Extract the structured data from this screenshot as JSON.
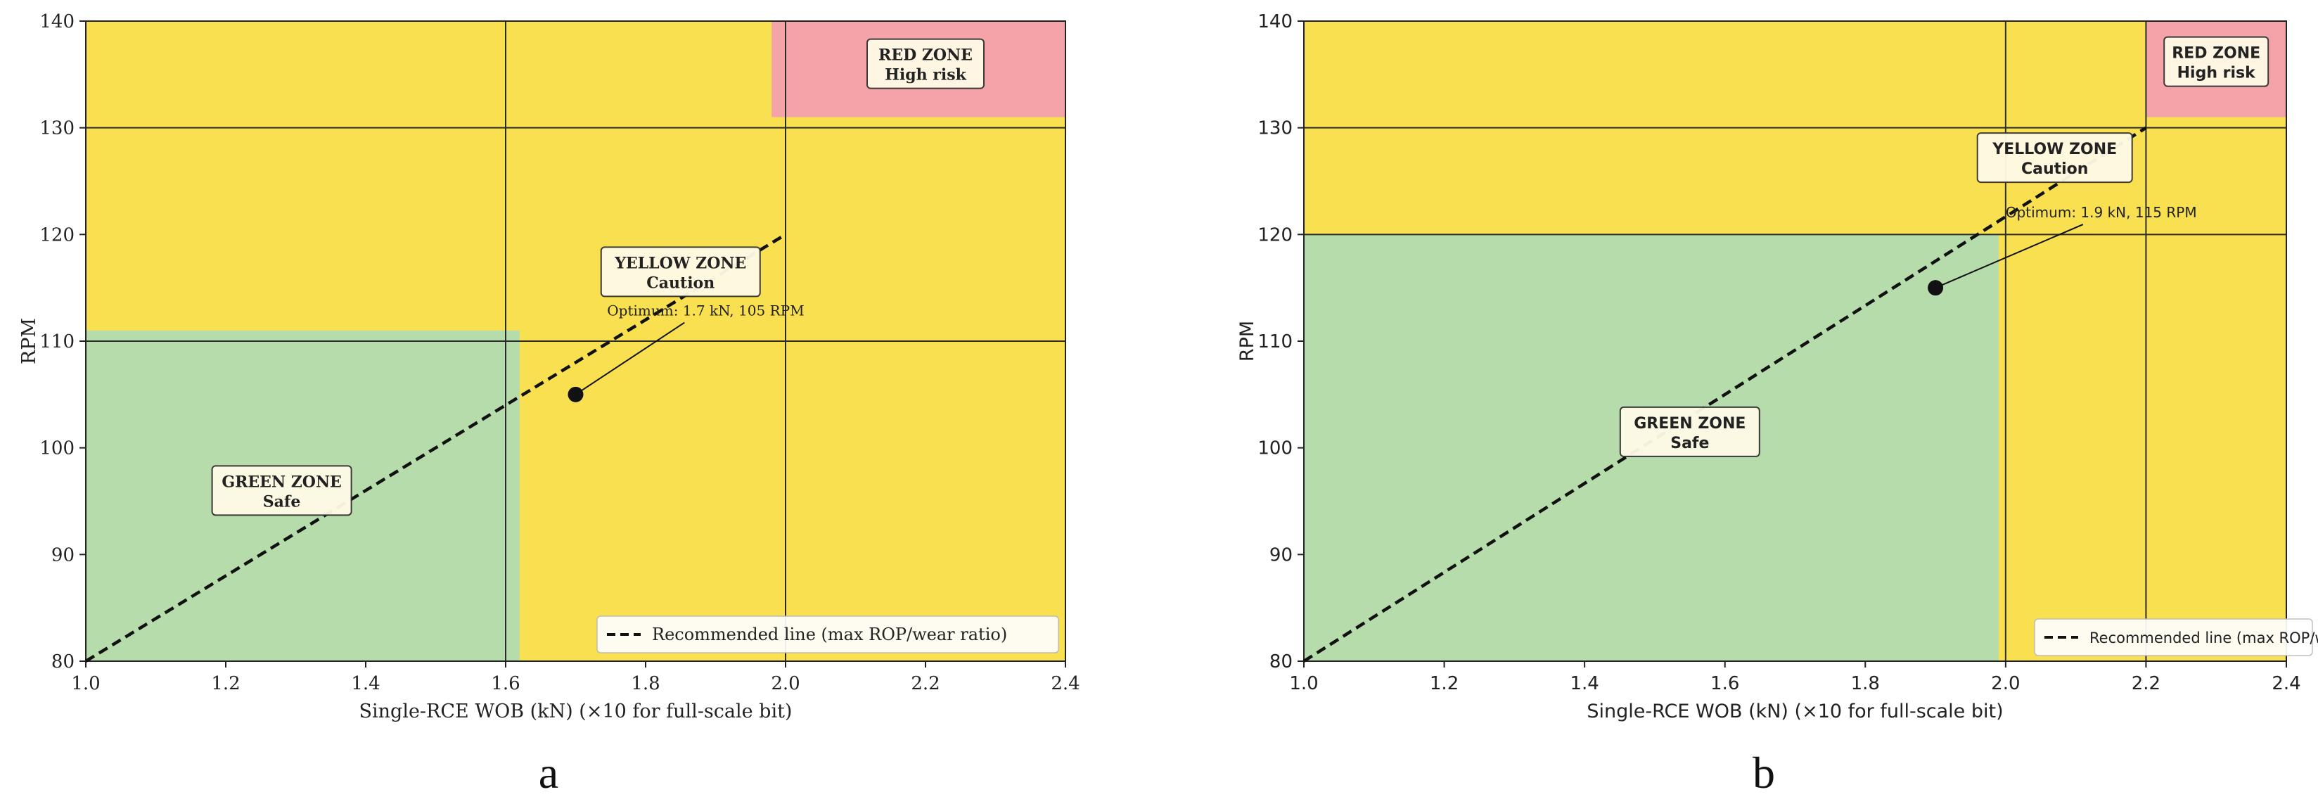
{
  "chart_data": [
    {
      "panel_label": "a",
      "type": "line",
      "xlabel": "Single-RCE WOB (kN)  (×10 for full-scale bit)",
      "ylabel": "RPM",
      "xlim": [
        1.0,
        2.4
      ],
      "ylim": [
        80,
        140
      ],
      "xticks": [
        "1.0",
        "1.2",
        "1.4",
        "1.6",
        "1.8",
        "2.0",
        "2.2",
        "2.4"
      ],
      "yticks": [
        "80",
        "90",
        "100",
        "110",
        "120",
        "130",
        "140"
      ],
      "grid_x": [
        1.6,
        2.0
      ],
      "grid_y": [
        110,
        130
      ],
      "zones": [
        {
          "x": [
            1.0,
            2.4
          ],
          "y": [
            80,
            140
          ],
          "color": "#f8e050"
        },
        {
          "x": [
            1.0,
            1.62
          ],
          "y": [
            80,
            111
          ],
          "color": "#b6dcab"
        },
        {
          "x": [
            1.98,
            2.4
          ],
          "y": [
            131,
            140
          ],
          "color": "#f4a4a8"
        }
      ],
      "zone_labels": [
        {
          "line1": "RED ZONE",
          "line2": "High risk",
          "x": 2.2,
          "y": 136
        },
        {
          "line1": "YELLOW ZONE",
          "line2": "Caution",
          "x": 1.85,
          "y": 116.5
        },
        {
          "line1": "GREEN ZONE",
          "line2": "Safe",
          "x": 1.28,
          "y": 96
        }
      ],
      "series": [
        {
          "name": "Recommended line (max ROP/wear ratio)",
          "style": "dashed",
          "x": [
            1.0,
            2.0
          ],
          "y": [
            80,
            120
          ]
        }
      ],
      "optimum": {
        "x": 1.7,
        "y": 105,
        "label": "Optimum: 1.7 kN, 105 RPM",
        "label_x": 1.745,
        "label_y": 112.4
      },
      "legend": "lower-right"
    },
    {
      "panel_label": "b",
      "type": "line",
      "xlabel": "Single-RCE WOB (kN)  (×10 for full-scale bit)",
      "ylabel": "RPM",
      "xlim": [
        1.0,
        2.4
      ],
      "ylim": [
        80,
        140
      ],
      "xticks": [
        "1.0",
        "1.2",
        "1.4",
        "1.6",
        "1.8",
        "2.0",
        "2.2",
        "2.4"
      ],
      "yticks": [
        "80",
        "90",
        "100",
        "110",
        "120",
        "130",
        "140"
      ],
      "grid_x": [
        2.0,
        2.2
      ],
      "grid_y": [
        120,
        130
      ],
      "zones": [
        {
          "x": [
            1.0,
            2.4
          ],
          "y": [
            80,
            140
          ],
          "color": "#f8e050"
        },
        {
          "x": [
            1.0,
            1.99
          ],
          "y": [
            80,
            120
          ],
          "color": "#b6dcab"
        },
        {
          "x": [
            2.2,
            2.4
          ],
          "y": [
            131,
            140
          ],
          "color": "#f4a4a8"
        }
      ],
      "zone_labels": [
        {
          "line1": "RED ZONE",
          "line2": "High risk",
          "x": 2.3,
          "y": 136.2
        },
        {
          "line1": "YELLOW ZONE",
          "line2": "Caution",
          "x": 2.07,
          "y": 127.2
        },
        {
          "line1": "GREEN ZONE",
          "line2": "Safe",
          "x": 1.55,
          "y": 101.5
        }
      ],
      "series": [
        {
          "name": "Recommended line (max ROP/wear ratio)",
          "style": "dashed",
          "x": [
            1.0,
            2.2
          ],
          "y": [
            80,
            130
          ]
        }
      ],
      "optimum": {
        "x": 1.9,
        "y": 115,
        "label": "Optimum: 1.9 kN, 115 RPM",
        "label_x": 2.0,
        "label_y": 121.6
      },
      "legend": "lower-right"
    }
  ]
}
